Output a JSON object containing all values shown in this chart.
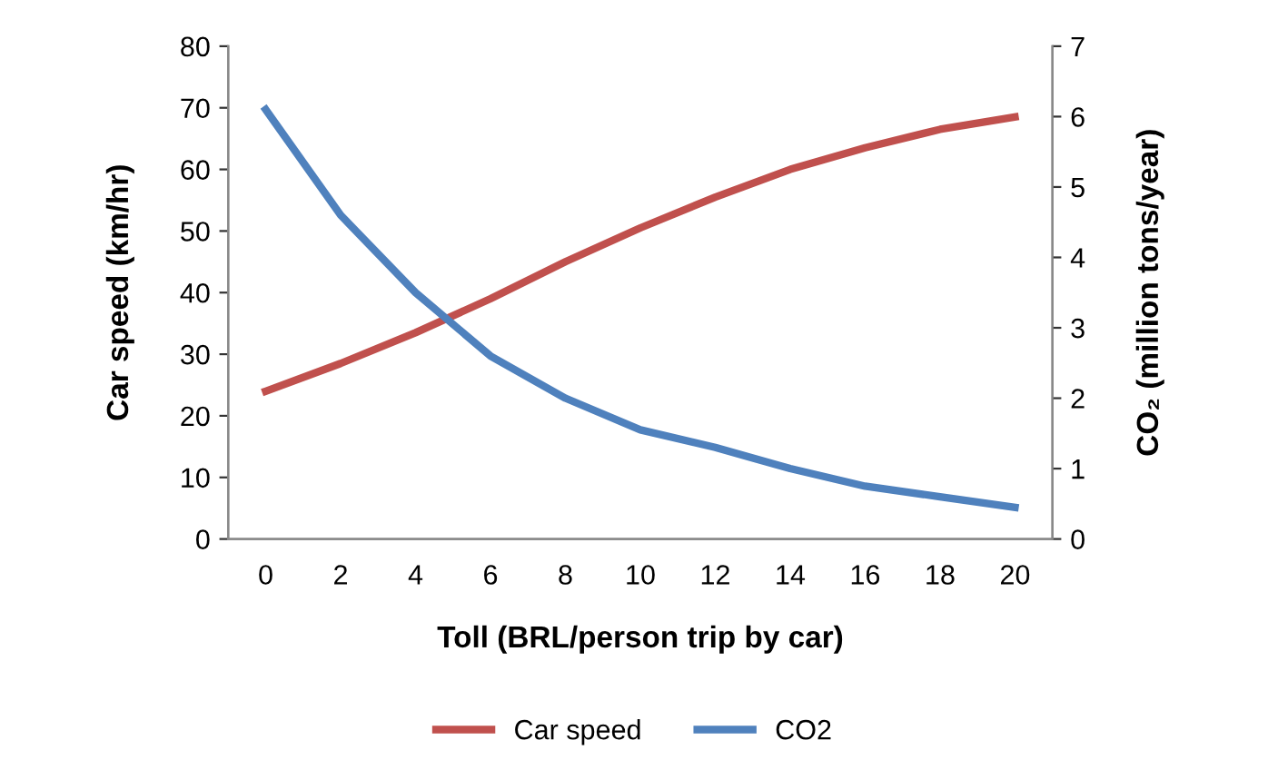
{
  "chart_data": {
    "type": "line",
    "xlabel": "Toll (BRL/person trip by car)",
    "ylabel": "Car speed (km/hr)",
    "y2label": "CO₂ (million tons/year)",
    "categories": [
      "0",
      "2",
      "4",
      "6",
      "8",
      "10",
      "12",
      "14",
      "16",
      "18",
      "20"
    ],
    "series": [
      {
        "name": "Car speed",
        "color": "#c0504d",
        "values": [
          24,
          28.5,
          33.5,
          39,
          45,
          50.5,
          55.5,
          60,
          63.5,
          66.5,
          68.5
        ]
      },
      {
        "name": "CO2",
        "color": "#4f81bd",
        "axis": "y2",
        "values": [
          6.1,
          4.6,
          3.5,
          2.6,
          2.0,
          1.55,
          1.3,
          1.0,
          0.75,
          0.6,
          0.45
        ]
      }
    ],
    "ylim": [
      0,
      80
    ],
    "yticks": [
      0,
      10,
      20,
      30,
      40,
      50,
      60,
      70,
      80
    ],
    "y2lim": [
      0,
      7
    ],
    "y2ticks": [
      0,
      1,
      2,
      3,
      4,
      5,
      6,
      7
    ],
    "grid": false,
    "legend": "bottom",
    "marker": "none",
    "line_style": "solid"
  }
}
